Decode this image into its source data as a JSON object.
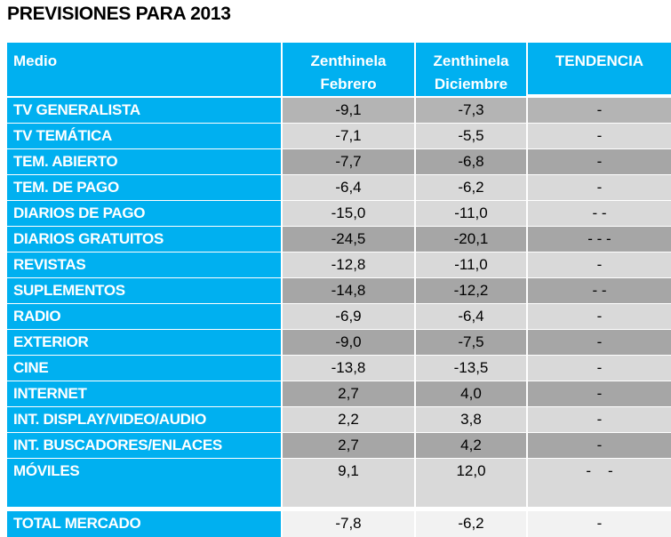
{
  "title": "PREVISIONES PARA 2013",
  "headers": {
    "medio": "Medio",
    "feb_1": "Zenthinela",
    "feb_2": "Febrero",
    "dic_1": "Zenthinela",
    "dic_2": "Diciembre",
    "tendencia": "TENDENCIA"
  },
  "colors": {
    "header": "#00b0f0",
    "dark": "#a6a6a6",
    "mid": "#b4b4b4",
    "light": "#d9d9d9",
    "total": "#f2f2f2"
  },
  "rows": [
    {
      "medio": "TV GENERALISTA",
      "febrero": "-9,1",
      "diciembre": "-7,3",
      "tendencia": "-",
      "shade": "mid"
    },
    {
      "medio": "TV TEMÁTICA",
      "febrero": "-7,1",
      "diciembre": "-5,5",
      "tendencia": "-",
      "shade": "light"
    },
    {
      "medio": "TEM. ABIERTO",
      "febrero": "-7,7",
      "diciembre": "-6,8",
      "tendencia": "-",
      "shade": "dark"
    },
    {
      "medio": "TEM. DE PAGO",
      "febrero": "-6,4",
      "diciembre": "-6,2",
      "tendencia": "-",
      "shade": "light"
    },
    {
      "medio": "DIARIOS DE PAGO",
      "febrero": "-15,0",
      "diciembre": "-11,0",
      "tendencia": "- -",
      "shade": "light"
    },
    {
      "medio": "DIARIOS GRATUITOS",
      "febrero": "-24,5",
      "diciembre": "-20,1",
      "tendencia": "- - -",
      "shade": "dark"
    },
    {
      "medio": "REVISTAS",
      "febrero": "-12,8",
      "diciembre": "-11,0",
      "tendencia": "-",
      "shade": "light"
    },
    {
      "medio": "SUPLEMENTOS",
      "febrero": "-14,8",
      "diciembre": "-12,2",
      "tendencia": "- -",
      "shade": "dark"
    },
    {
      "medio": "RADIO",
      "febrero": "-6,9",
      "diciembre": "-6,4",
      "tendencia": "-",
      "shade": "light"
    },
    {
      "medio": "EXTERIOR",
      "febrero": "-9,0",
      "diciembre": "-7,5",
      "tendencia": "-",
      "shade": "dark"
    },
    {
      "medio": "CINE",
      "febrero": "-13,8",
      "diciembre": "-13,5",
      "tendencia": "-",
      "shade": "light"
    },
    {
      "medio": "INTERNET",
      "febrero": "2,7",
      "diciembre": "4,0",
      "tendencia": "-",
      "shade": "dark"
    },
    {
      "medio": "INT. DISPLAY/VIDEO/AUDIO",
      "febrero": "2,2",
      "diciembre": "3,8",
      "tendencia": "-",
      "shade": "light"
    },
    {
      "medio": "INT. BUSCADORES/ENLACES",
      "febrero": "2,7",
      "diciembre": "4,2",
      "tendencia": "-",
      "shade": "dark"
    },
    {
      "medio": "MÓVILES",
      "febrero": "9,1",
      "diciembre": "12,0",
      "tendencia": "-    -",
      "shade": "light"
    }
  ],
  "total": {
    "medio": "TOTAL MERCADO",
    "febrero": "-7,8",
    "diciembre": "-6,2",
    "tendencia": "-"
  }
}
